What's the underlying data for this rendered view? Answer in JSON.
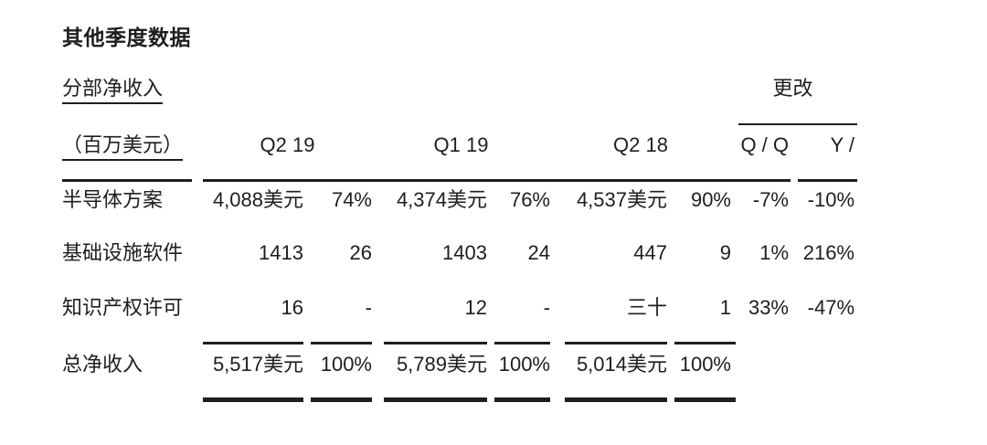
{
  "page": {
    "title": "其他季度数据",
    "section_label": "分部净收入",
    "change_label": "更改",
    "unit_label": "（百万美元）"
  },
  "table": {
    "column_headers": [
      "Q2 19",
      "Q1 19",
      "Q2 18",
      "Q / Q",
      "Y /"
    ],
    "rows": [
      {
        "label": "半导体方案",
        "cells": [
          "4,088美元",
          "74%",
          "4,374美元",
          "76%",
          "4,537美元",
          "90%",
          "-7%",
          "-10%"
        ]
      },
      {
        "label": "基础设施软件",
        "cells": [
          "1413",
          "26",
          "1403",
          "24",
          "447",
          "9",
          "1%",
          "216%"
        ]
      },
      {
        "label": "知识产权许可",
        "cells": [
          "16",
          "-",
          "12",
          "-",
          "三十",
          "1",
          "33%",
          "-47%"
        ]
      }
    ],
    "total": {
      "label": "总净收入",
      "cells": [
        "5,517美元",
        "100%",
        "5,789美元",
        "100%",
        "5,014美元",
        "100%",
        "",
        ""
      ]
    }
  }
}
